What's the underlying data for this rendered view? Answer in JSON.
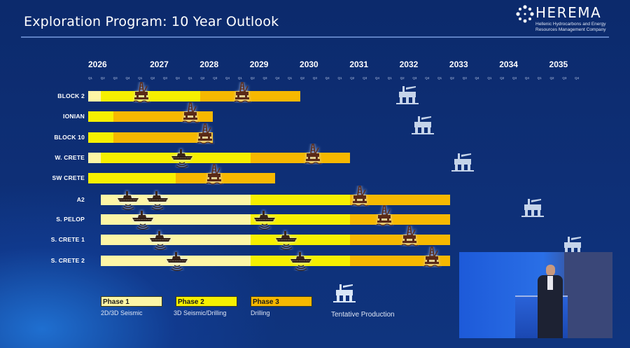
{
  "header": {
    "title": "Exploration Program: 10 Year Outlook",
    "logo_name": "HEREMA",
    "logo_subtitle_1": "Hellenic Hydrocarbons and Energy",
    "logo_subtitle_2": "Resources Management Company"
  },
  "chart_data": {
    "type": "gantt",
    "years": [
      "2026",
      "2027",
      "2028",
      "2029",
      "2030",
      "2031",
      "2032",
      "2033",
      "2034",
      "2035"
    ],
    "quarters": [
      "Q1",
      "Q2",
      "Q3",
      "Q4"
    ],
    "phase_colors": {
      "1": "#fdf6a6",
      "2": "#f6f000",
      "3": "#f6b800"
    },
    "rows": [
      {
        "label": "BLOCK 2",
        "phases": [
          {
            "phase": 1,
            "start": "2026-Q1",
            "end": "2026-Q1"
          },
          {
            "phase": 2,
            "start": "2026-Q2",
            "end": "2028-Q1"
          },
          {
            "phase": 3,
            "start": "2028-Q2",
            "end": "2030-Q1"
          }
        ],
        "markers": [
          {
            "type": "drilling-rig",
            "at": 2027.07
          },
          {
            "type": "drilling-rig",
            "at": 2029.09
          }
        ],
        "production": 2032.4
      },
      {
        "label": "IONIAN",
        "phases": [
          {
            "phase": 2,
            "start": "2026-Q1",
            "end": "2026-Q2"
          },
          {
            "phase": 3,
            "start": "2026-Q3",
            "end": "2028-Q2"
          }
        ],
        "markers": [
          {
            "type": "drilling-rig",
            "at": 2028.05
          }
        ],
        "production": 2032.7
      },
      {
        "label": "BLOCK 10",
        "phases": [
          {
            "phase": 2,
            "start": "2026-Q1",
            "end": "2026-Q2"
          },
          {
            "phase": 3,
            "start": "2026-Q3",
            "end": "2028-Q2"
          }
        ],
        "markers": [
          {
            "type": "drilling-rig",
            "at": 2028.34
          }
        ]
      },
      {
        "label": "W. CRETE",
        "phases": [
          {
            "phase": 1,
            "start": "2026-Q1",
            "end": "2026-Q1"
          },
          {
            "phase": 2,
            "start": "2026-Q2",
            "end": "2029-Q1"
          },
          {
            "phase": 3,
            "start": "2029-Q2",
            "end": "2031-Q1"
          }
        ],
        "markers": [
          {
            "type": "seismic-vessel",
            "at": 2027.88
          },
          {
            "type": "drilling-rig",
            "at": 2030.5
          }
        ],
        "production": 2033.5
      },
      {
        "label": "SW CRETE",
        "phases": [
          {
            "phase": 2,
            "start": "2026-Q1",
            "end": "2027-Q3"
          },
          {
            "phase": 3,
            "start": "2027-Q4",
            "end": "2029-Q3"
          }
        ],
        "markers": [
          {
            "type": "drilling-rig",
            "at": 2028.52
          }
        ]
      },
      {
        "label": "A2",
        "phases": [
          {
            "phase": 1,
            "start": "2026-Q2",
            "end": "2029-Q1"
          },
          {
            "phase": 2,
            "start": "2029-Q2",
            "end": "2031-Q1"
          },
          {
            "phase": 3,
            "start": "2031-Q2",
            "end": "2033-Q1"
          }
        ],
        "markers": [
          {
            "type": "seismic-vessel",
            "at": 2026.8
          },
          {
            "type": "seismic-vessel",
            "at": 2027.39
          },
          {
            "type": "drilling-rig",
            "at": 2031.44
          }
        ],
        "production": 2034.9
      },
      {
        "label": "S. PELOP",
        "phases": [
          {
            "phase": 1,
            "start": "2026-Q2",
            "end": "2029-Q1"
          },
          {
            "phase": 2,
            "start": "2029-Q2",
            "end": "2031-Q1"
          },
          {
            "phase": 3,
            "start": "2031-Q2",
            "end": "2033-Q1"
          }
        ],
        "markers": [
          {
            "type": "seismic-vessel",
            "at": 2027.09
          },
          {
            "type": "seismic-vessel",
            "at": 2029.53
          },
          {
            "type": "drilling-rig",
            "at": 2031.93
          }
        ]
      },
      {
        "label": "S. CRETE 1",
        "phases": [
          {
            "phase": 1,
            "start": "2026-Q2",
            "end": "2029-Q1"
          },
          {
            "phase": 2,
            "start": "2029-Q2",
            "end": "2031-Q1"
          },
          {
            "phase": 3,
            "start": "2031-Q2",
            "end": "2033-Q1"
          }
        ],
        "markers": [
          {
            "type": "seismic-vessel",
            "at": 2027.44
          },
          {
            "type": "seismic-vessel",
            "at": 2029.97
          },
          {
            "type": "drilling-rig",
            "at": 2032.44
          }
        ],
        "production": 2035.7
      },
      {
        "label": "S. CRETE 2",
        "phases": [
          {
            "phase": 1,
            "start": "2026-Q2",
            "end": "2029-Q1"
          },
          {
            "phase": 2,
            "start": "2029-Q2",
            "end": "2031-Q1"
          },
          {
            "phase": 3,
            "start": "2031-Q2",
            "end": "2033-Q1"
          }
        ],
        "markers": [
          {
            "type": "seismic-vessel",
            "at": 2027.78
          },
          {
            "type": "seismic-vessel",
            "at": 2030.26
          },
          {
            "type": "drilling-rig",
            "at": 2032.89
          }
        ]
      }
    ]
  },
  "legend": {
    "phase1": {
      "label": "Phase 1",
      "desc": "2D/3D Seismic"
    },
    "phase2": {
      "label": "Phase 2",
      "desc": "3D Seismic/Drilling"
    },
    "phase3": {
      "label": "Phase 3",
      "desc": "Drilling"
    },
    "production": {
      "desc": "Tentative Production"
    }
  }
}
